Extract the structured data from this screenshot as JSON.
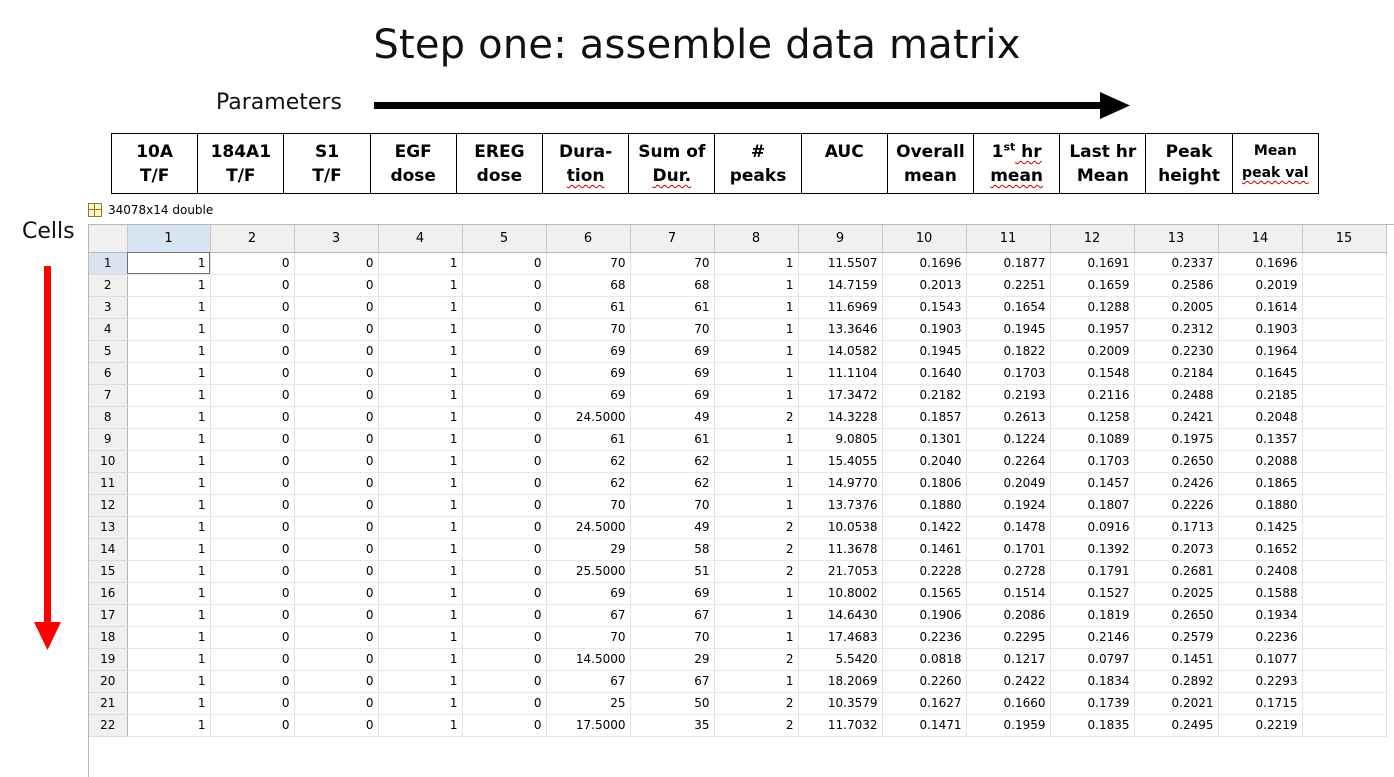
{
  "title": "Step one: assemble data matrix",
  "parameters_label": "Parameters",
  "cells_label": "Cells",
  "colors": {
    "right_arrow": "#000000",
    "down_arrow": "#ff0000",
    "header_bg": "#f0f0f0",
    "selected_header_bg": "#d9e4f2"
  },
  "param_headers": [
    {
      "line1": "10A",
      "line2": "T/F"
    },
    {
      "line1": "184A1",
      "line2": "T/F"
    },
    {
      "line1": "S1",
      "line2": "T/F"
    },
    {
      "line1": "EGF",
      "line2": "dose"
    },
    {
      "line1": "EREG",
      "line2": "dose"
    },
    {
      "line1": "Dura-",
      "line2": "tion"
    },
    {
      "line1": "Sum of",
      "line2": "Dur."
    },
    {
      "line1": "#",
      "line2": "peaks"
    },
    {
      "line1": "AUC",
      "line2": ""
    },
    {
      "line1": "Overall",
      "line2": "mean"
    },
    {
      "line1": "1",
      "line1_sup": "st",
      "line1_rest": " hr",
      "line2": "mean"
    },
    {
      "line1": "Last hr",
      "line2": "Mean"
    },
    {
      "line1": "Peak",
      "line2": "height"
    },
    {
      "line1": "Mean",
      "line2": "peak val"
    }
  ],
  "variable_label": "34078x14 double",
  "grid": {
    "columns": [
      "1",
      "2",
      "3",
      "4",
      "5",
      "6",
      "7",
      "8",
      "9",
      "10",
      "11",
      "12",
      "13",
      "14",
      "15"
    ],
    "rows": [
      [
        "1",
        "0",
        "0",
        "1",
        "0",
        "70",
        "70",
        "1",
        "11.5507",
        "0.1696",
        "0.1877",
        "0.1691",
        "0.2337",
        "0.1696"
      ],
      [
        "1",
        "0",
        "0",
        "1",
        "0",
        "68",
        "68",
        "1",
        "14.7159",
        "0.2013",
        "0.2251",
        "0.1659",
        "0.2586",
        "0.2019"
      ],
      [
        "1",
        "0",
        "0",
        "1",
        "0",
        "61",
        "61",
        "1",
        "11.6969",
        "0.1543",
        "0.1654",
        "0.1288",
        "0.2005",
        "0.1614"
      ],
      [
        "1",
        "0",
        "0",
        "1",
        "0",
        "70",
        "70",
        "1",
        "13.3646",
        "0.1903",
        "0.1945",
        "0.1957",
        "0.2312",
        "0.1903"
      ],
      [
        "1",
        "0",
        "0",
        "1",
        "0",
        "69",
        "69",
        "1",
        "14.0582",
        "0.1945",
        "0.1822",
        "0.2009",
        "0.2230",
        "0.1964"
      ],
      [
        "1",
        "0",
        "0",
        "1",
        "0",
        "69",
        "69",
        "1",
        "11.1104",
        "0.1640",
        "0.1703",
        "0.1548",
        "0.2184",
        "0.1645"
      ],
      [
        "1",
        "0",
        "0",
        "1",
        "0",
        "69",
        "69",
        "1",
        "17.3472",
        "0.2182",
        "0.2193",
        "0.2116",
        "0.2488",
        "0.2185"
      ],
      [
        "1",
        "0",
        "0",
        "1",
        "0",
        "24.5000",
        "49",
        "2",
        "14.3228",
        "0.1857",
        "0.2613",
        "0.1258",
        "0.2421",
        "0.2048"
      ],
      [
        "1",
        "0",
        "0",
        "1",
        "0",
        "61",
        "61",
        "1",
        "9.0805",
        "0.1301",
        "0.1224",
        "0.1089",
        "0.1975",
        "0.1357"
      ],
      [
        "1",
        "0",
        "0",
        "1",
        "0",
        "62",
        "62",
        "1",
        "15.4055",
        "0.2040",
        "0.2264",
        "0.1703",
        "0.2650",
        "0.2088"
      ],
      [
        "1",
        "0",
        "0",
        "1",
        "0",
        "62",
        "62",
        "1",
        "14.9770",
        "0.1806",
        "0.2049",
        "0.1457",
        "0.2426",
        "0.1865"
      ],
      [
        "1",
        "0",
        "0",
        "1",
        "0",
        "70",
        "70",
        "1",
        "13.7376",
        "0.1880",
        "0.1924",
        "0.1807",
        "0.2226",
        "0.1880"
      ],
      [
        "1",
        "0",
        "0",
        "1",
        "0",
        "24.5000",
        "49",
        "2",
        "10.0538",
        "0.1422",
        "0.1478",
        "0.0916",
        "0.1713",
        "0.1425"
      ],
      [
        "1",
        "0",
        "0",
        "1",
        "0",
        "29",
        "58",
        "2",
        "11.3678",
        "0.1461",
        "0.1701",
        "0.1392",
        "0.2073",
        "0.1652"
      ],
      [
        "1",
        "0",
        "0",
        "1",
        "0",
        "25.5000",
        "51",
        "2",
        "21.7053",
        "0.2228",
        "0.2728",
        "0.1791",
        "0.2681",
        "0.2408"
      ],
      [
        "1",
        "0",
        "0",
        "1",
        "0",
        "69",
        "69",
        "1",
        "10.8002",
        "0.1565",
        "0.1514",
        "0.1527",
        "0.2025",
        "0.1588"
      ],
      [
        "1",
        "0",
        "0",
        "1",
        "0",
        "67",
        "67",
        "1",
        "14.6430",
        "0.1906",
        "0.2086",
        "0.1819",
        "0.2650",
        "0.1934"
      ],
      [
        "1",
        "0",
        "0",
        "1",
        "0",
        "70",
        "70",
        "1",
        "17.4683",
        "0.2236",
        "0.2295",
        "0.2146",
        "0.2579",
        "0.2236"
      ],
      [
        "1",
        "0",
        "0",
        "1",
        "0",
        "14.5000",
        "29",
        "2",
        "5.5420",
        "0.0818",
        "0.1217",
        "0.0797",
        "0.1451",
        "0.1077"
      ],
      [
        "1",
        "0",
        "0",
        "1",
        "0",
        "67",
        "67",
        "1",
        "18.2069",
        "0.2260",
        "0.2422",
        "0.1834",
        "0.2892",
        "0.2293"
      ],
      [
        "1",
        "0",
        "0",
        "1",
        "0",
        "25",
        "50",
        "2",
        "10.3579",
        "0.1627",
        "0.1660",
        "0.1739",
        "0.2021",
        "0.1715"
      ],
      [
        "1",
        "0",
        "0",
        "1",
        "0",
        "17.5000",
        "35",
        "2",
        "11.7032",
        "0.1471",
        "0.1959",
        "0.1835",
        "0.2495",
        "0.2219"
      ]
    ]
  }
}
